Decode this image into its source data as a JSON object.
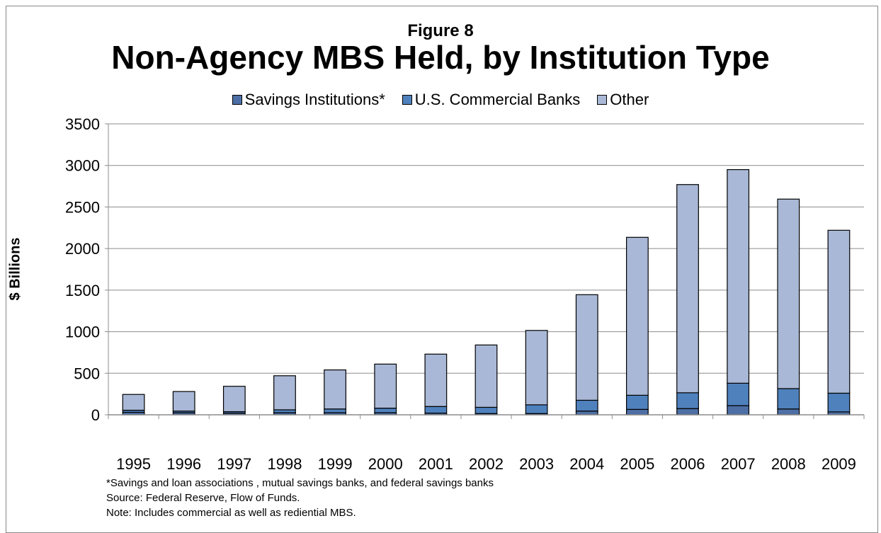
{
  "chart_data": {
    "type": "bar",
    "stacked": true,
    "figure_label": "Figure 8",
    "title": "Non-Agency MBS Held, by Institution Type",
    "ylabel": "$ Billions",
    "xlabel": "",
    "ylim": [
      0,
      3500
    ],
    "yticks": [
      0,
      500,
      1000,
      1500,
      2000,
      2500,
      3000,
      3500
    ],
    "grid": true,
    "legend_position": "top",
    "categories": [
      "1995",
      "1996",
      "1997",
      "1998",
      "1999",
      "2000",
      "2001",
      "2002",
      "2003",
      "2004",
      "2005",
      "2006",
      "2007",
      "2008",
      "2009"
    ],
    "series": [
      {
        "name": "Savings Institutions*",
        "color": "#4d6fa5",
        "values": [
          30,
          25,
          20,
          25,
          25,
          25,
          20,
          15,
          15,
          45,
          65,
          75,
          110,
          70,
          35
        ]
      },
      {
        "name": "U.S. Commercial Banks",
        "color": "#4f81bd",
        "values": [
          25,
          20,
          18,
          35,
          45,
          55,
          80,
          75,
          105,
          130,
          170,
          190,
          270,
          245,
          225
        ]
      },
      {
        "name": "Other",
        "color": "#a9b8d6",
        "values": [
          190,
          235,
          305,
          410,
          470,
          530,
          630,
          750,
          895,
          1270,
          1900,
          2505,
          2570,
          2280,
          1960
        ]
      }
    ]
  },
  "notes": [
    "*Savings and loan associations , mutual savings banks, and federal savings banks",
    "Source: Federal Reserve, Flow of Funds.",
    "Note: Includes commercial as well as rediential MBS."
  ]
}
